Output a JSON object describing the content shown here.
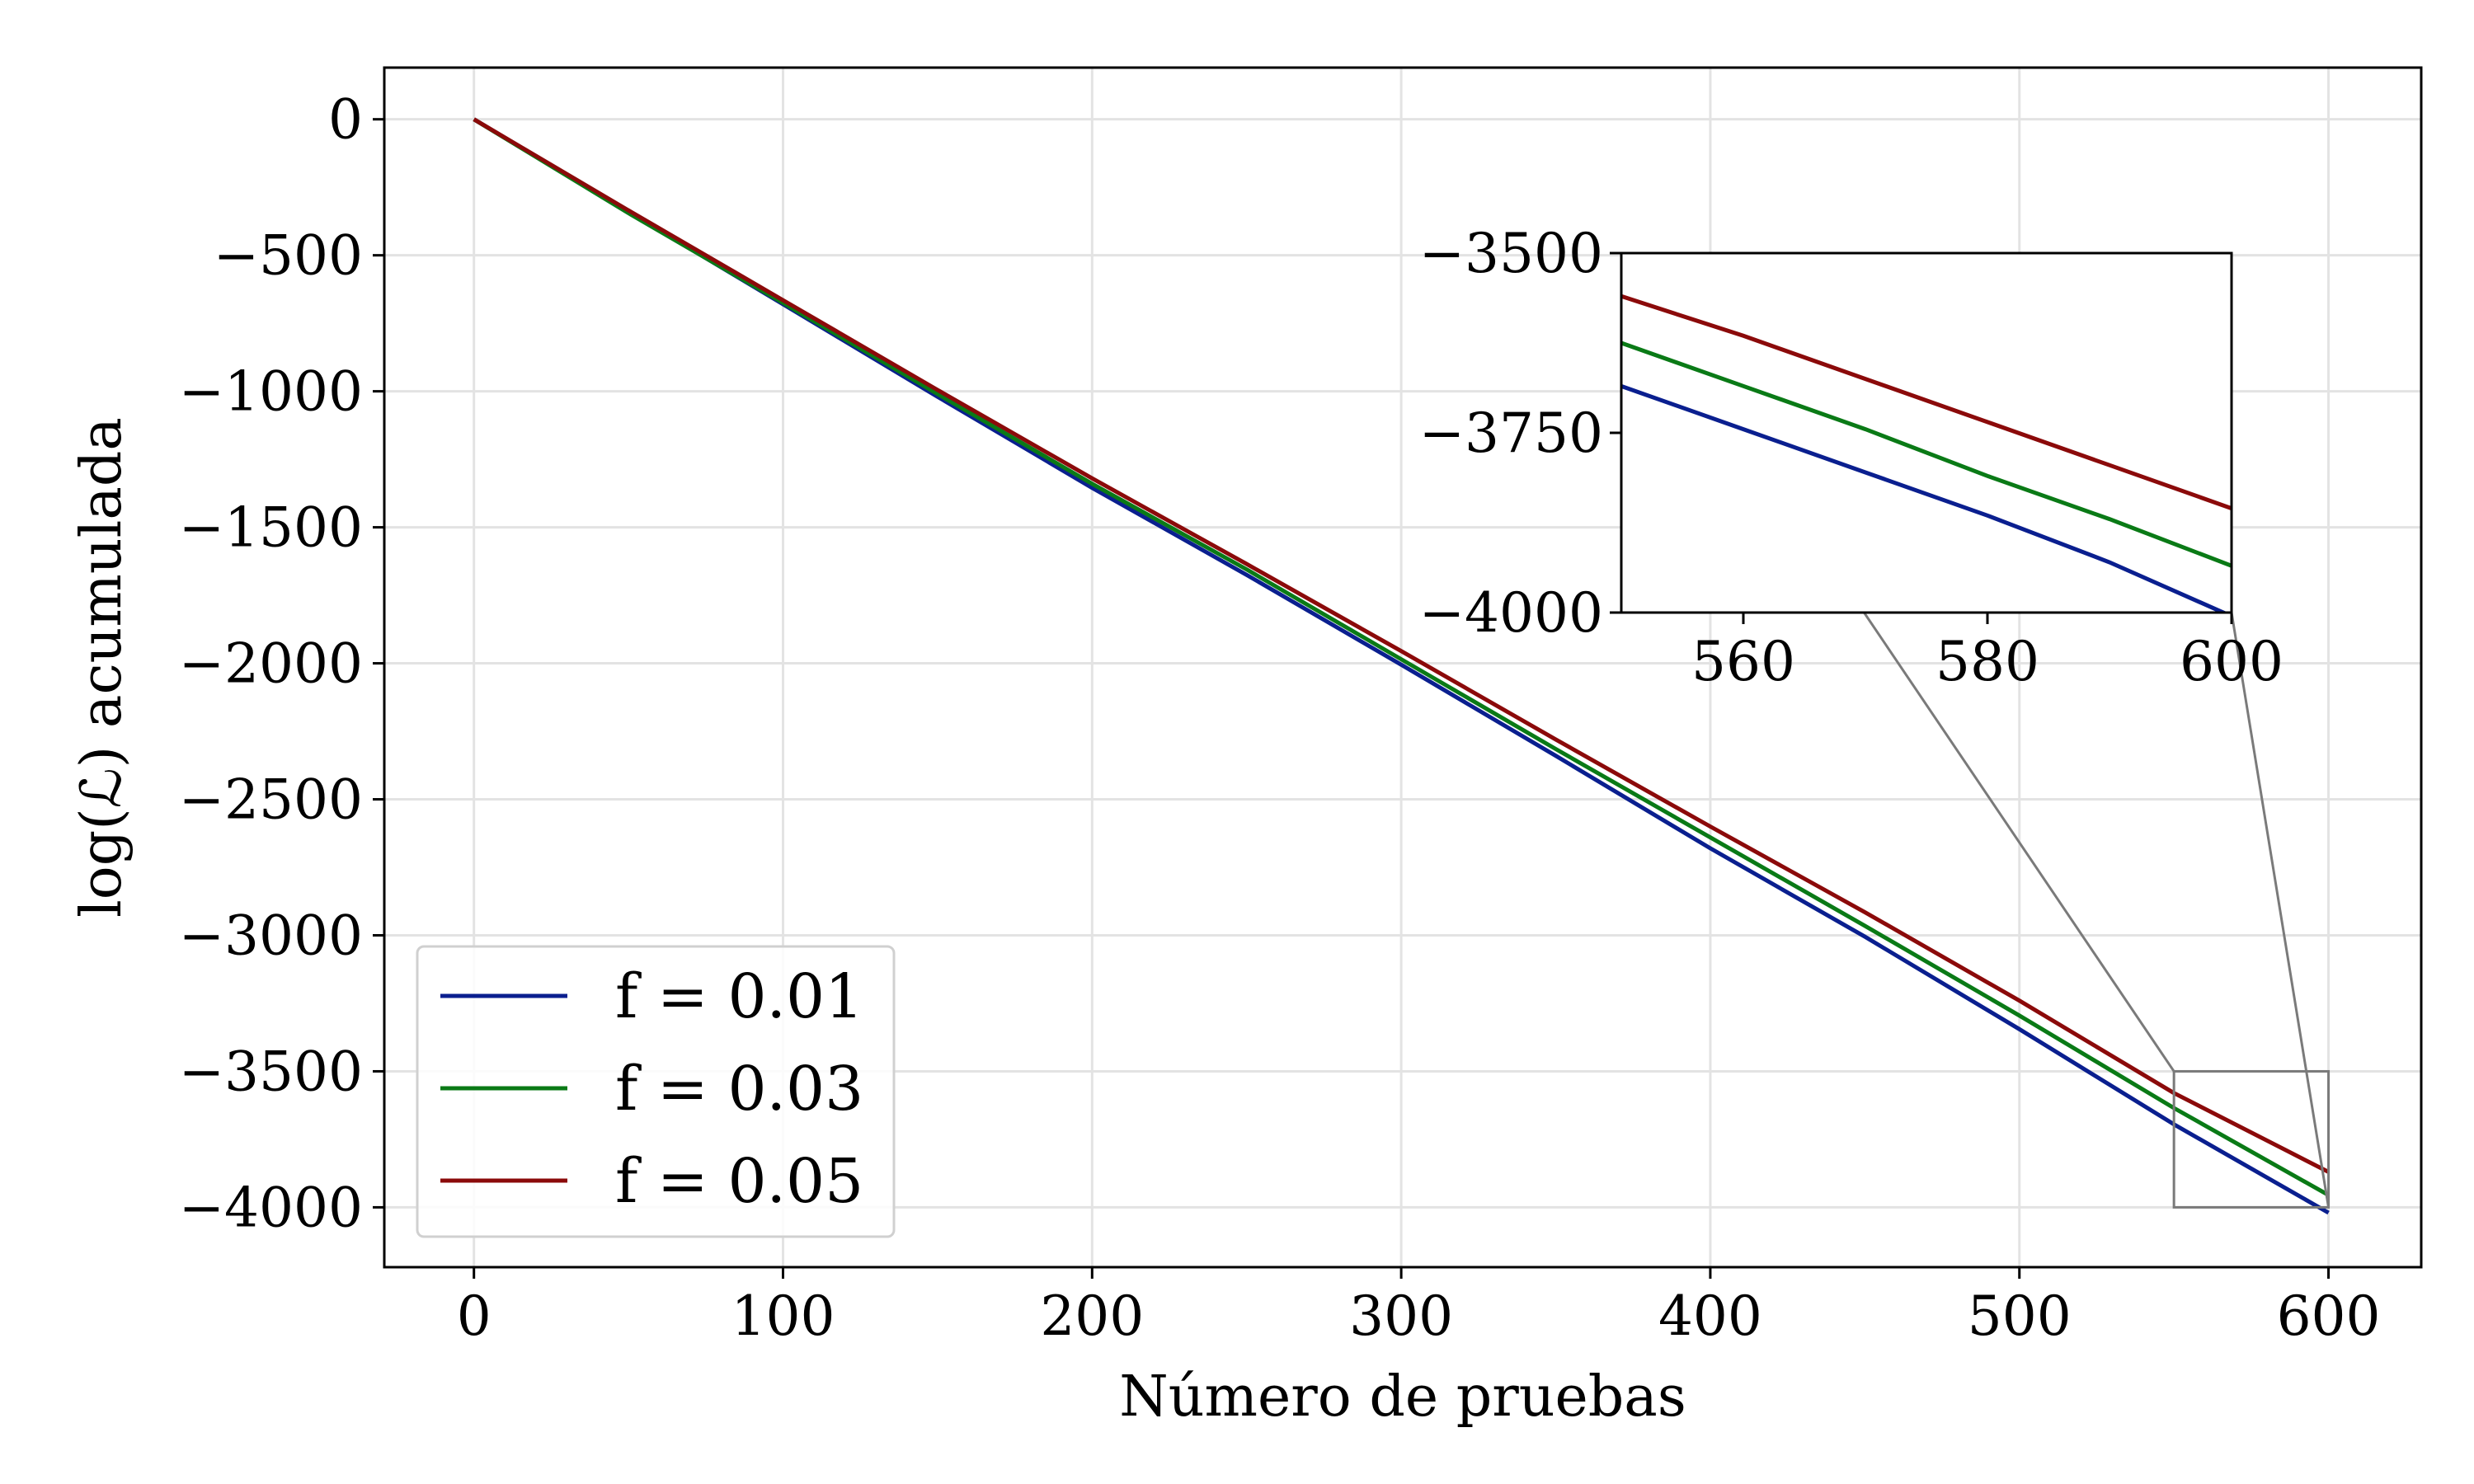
{
  "chart_data": {
    "type": "line",
    "xlabel": "Número de pruebas",
    "ylabel": "log(ℒ) acumulada",
    "xlim": [
      -29,
      630
    ],
    "ylim": [
      -4220,
      190
    ],
    "xticks": [
      0,
      100,
      200,
      300,
      400,
      500,
      600
    ],
    "yticks": [
      0,
      -500,
      -1000,
      -1500,
      -2000,
      -2500,
      -3000,
      -3500,
      -4000
    ],
    "xtick_labels": [
      "0",
      "100",
      "200",
      "300",
      "400",
      "500",
      "600"
    ],
    "ytick_labels": [
      "0",
      "−500",
      "−1000",
      "−1500",
      "−2000",
      "−2500",
      "−3000",
      "−3500",
      "−4000"
    ],
    "grid": true,
    "legend": "lower-left",
    "x": [
      0,
      50,
      100,
      150,
      200,
      250,
      300,
      350,
      400,
      450,
      500,
      550,
      600
    ],
    "series": [
      {
        "name": "f = 0.01",
        "color": "#0a1f8f",
        "values": [
          0,
          -340,
          -680,
          -1020,
          -1355,
          -1675,
          -2005,
          -2340,
          -2680,
          -3005,
          -3345,
          -3695,
          -4020
        ]
      },
      {
        "name": "f = 0.03",
        "color": "#0a7a16",
        "values": [
          0,
          -345,
          -675,
          -1010,
          -1340,
          -1655,
          -1985,
          -2315,
          -2640,
          -2965,
          -3295,
          -3635,
          -3955
        ]
      },
      {
        "name": "f = 0.05",
        "color": "#8b0a0a",
        "values": [
          0,
          -335,
          -665,
          -995,
          -1320,
          -1635,
          -1955,
          -2280,
          -2600,
          -2915,
          -3240,
          -3580,
          -3870
        ]
      }
    ],
    "inset": {
      "xlim": [
        550,
        600
      ],
      "ylim": [
        -4000,
        -3500
      ],
      "xticks": [
        560,
        580,
        600
      ],
      "yticks": [
        -3500,
        -3750,
        -4000
      ],
      "xtick_labels": [
        "560",
        "580",
        "600"
      ],
      "ytick_labels": [
        "−3500",
        "−3750",
        "−4000"
      ],
      "x": [
        550,
        560,
        570,
        580,
        590,
        600
      ],
      "series": [
        {
          "name": "f = 0.01",
          "color": "#0a1f8f",
          "values": [
            -3685,
            -3745,
            -3805,
            -3865,
            -3930,
            -4005
          ]
        },
        {
          "name": "f = 0.03",
          "color": "#0a7a16",
          "values": [
            -3625,
            -3685,
            -3745,
            -3810,
            -3870,
            -3935
          ]
        },
        {
          "name": "f = 0.05",
          "color": "#8b0a0a",
          "values": [
            -3560,
            -3615,
            -3675,
            -3735,
            -3795,
            -3855
          ]
        }
      ]
    }
  }
}
